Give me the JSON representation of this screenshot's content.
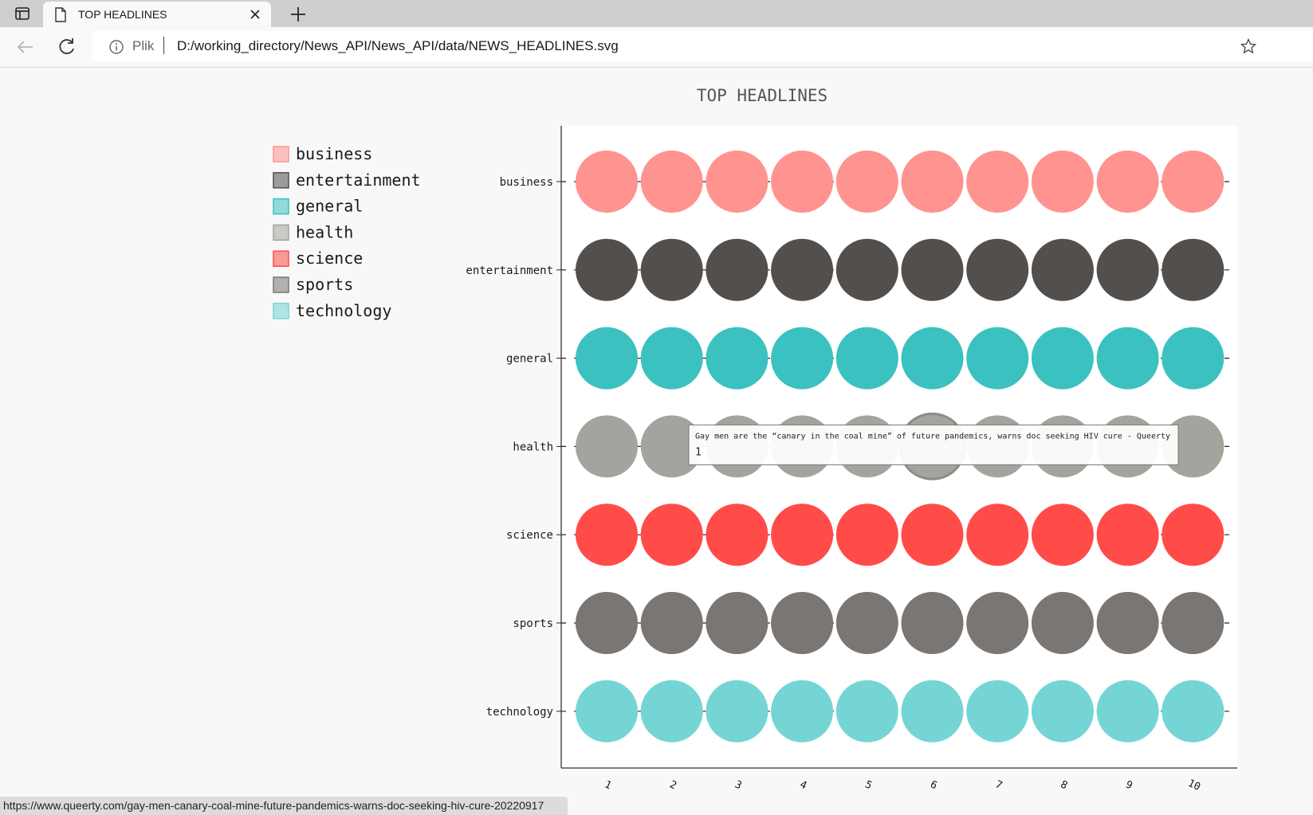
{
  "browser": {
    "tab_title": "TOP HEADLINES",
    "address_scheme": "Plik",
    "address_url": "D:/working_directory/News_API/News_API/data/NEWS_HEADLINES.svg",
    "status_url": "https://www.queerty.com/gay-men-canary-coal-mine-future-pandemics-warns-doc-seeking-hiv-cure-20220917"
  },
  "chart_data": {
    "type": "scatter",
    "title": "TOP HEADLINES",
    "categories": [
      "business",
      "entertainment",
      "general",
      "health",
      "science",
      "sports",
      "technology"
    ],
    "x": [
      1,
      2,
      3,
      4,
      5,
      6,
      7,
      8,
      9,
      10
    ],
    "series": [
      {
        "name": "business",
        "color": "#ff9390",
        "values": [
          1,
          1,
          1,
          1,
          1,
          1,
          1,
          1,
          1,
          1
        ]
      },
      {
        "name": "entertainment",
        "color": "#524f4d",
        "values": [
          1,
          1,
          1,
          1,
          1,
          1,
          1,
          1,
          1,
          1
        ]
      },
      {
        "name": "general",
        "color": "#3bc1c0",
        "values": [
          1,
          1,
          1,
          1,
          1,
          1,
          1,
          1,
          1,
          1
        ]
      },
      {
        "name": "health",
        "color": "#a2a49e",
        "values": [
          1,
          1,
          1,
          1,
          1,
          1,
          1,
          1,
          1,
          1
        ]
      },
      {
        "name": "science",
        "color": "#ff4c49",
        "values": [
          1,
          1,
          1,
          1,
          1,
          1,
          1,
          1,
          1,
          1
        ]
      },
      {
        "name": "sports",
        "color": "#7a7673",
        "values": [
          1,
          1,
          1,
          1,
          1,
          1,
          1,
          1,
          1,
          1
        ]
      },
      {
        "name": "technology",
        "color": "#75d5d5",
        "values": [
          1,
          1,
          1,
          1,
          1,
          1,
          1,
          1,
          1,
          1
        ]
      }
    ],
    "legend_position": "top-left",
    "tooltip": {
      "category": "health",
      "x": 6,
      "text": "Gay men are the “canary in the coal mine” of future pandemics, warns doc seeking HIV cure - Queerty",
      "value": "1"
    }
  }
}
